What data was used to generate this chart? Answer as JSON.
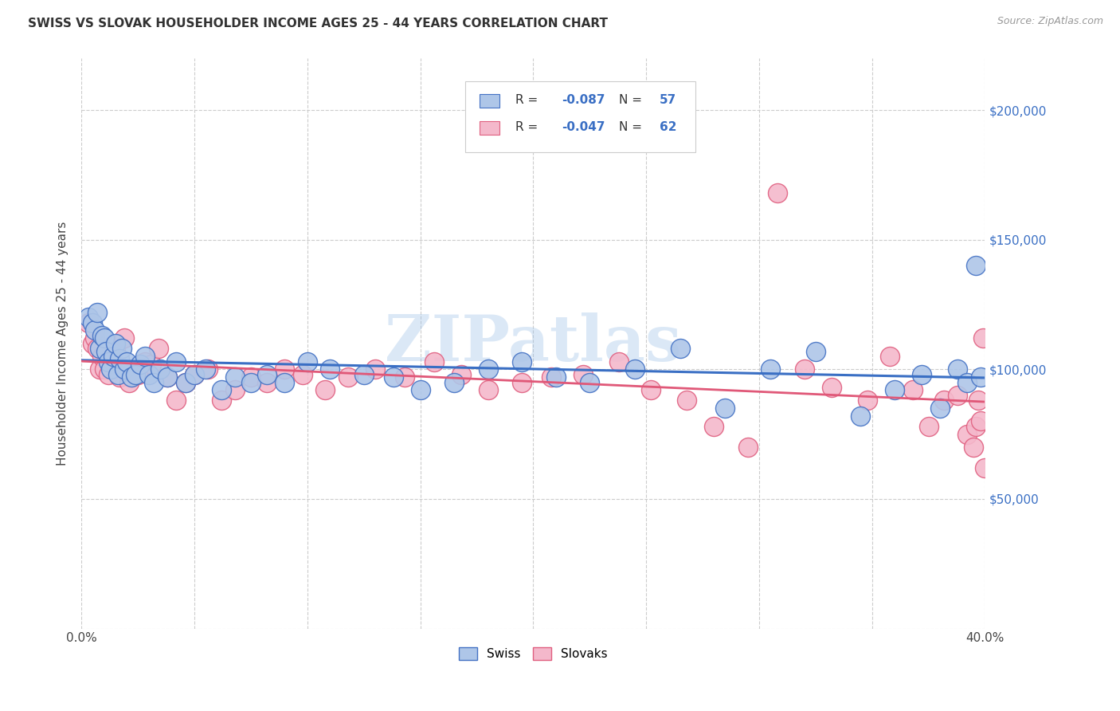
{
  "title": "SWISS VS SLOVAK HOUSEHOLDER INCOME AGES 25 - 44 YEARS CORRELATION CHART",
  "source": "Source: ZipAtlas.com",
  "ylabel": "Householder Income Ages 25 - 44 years",
  "xlim": [
    0.0,
    0.4
  ],
  "ylim": [
    0,
    220000
  ],
  "xtick_positions": [
    0.0,
    0.05,
    0.1,
    0.15,
    0.2,
    0.25,
    0.3,
    0.35,
    0.4
  ],
  "xticklabels": [
    "0.0%",
    "",
    "",
    "",
    "",
    "",
    "",
    "",
    "40.0%"
  ],
  "ytick_positions": [
    0,
    50000,
    100000,
    150000,
    200000
  ],
  "ytick_labels_right": [
    "",
    "$50,000",
    "$100,000",
    "$150,000",
    "$200,000"
  ],
  "swiss_R": -0.087,
  "swiss_N": 57,
  "slovak_R": -0.047,
  "slovak_N": 62,
  "swiss_color": "#aec6e8",
  "swiss_edge_color": "#4472c4",
  "slovak_color": "#f4b8cb",
  "slovak_edge_color": "#e06080",
  "line_blue": "#3a6fc4",
  "line_pink": "#e05878",
  "legend_value_color": "#3a6fc4",
  "legend_text_color": "#333333",
  "watermark": "ZIPatlas",
  "watermark_color_r": 0.6,
  "watermark_color_g": 0.75,
  "watermark_color_b": 0.9,
  "watermark_alpha": 0.35,
  "grid_color": "#cccccc",
  "background": "#ffffff",
  "swiss_x": [
    0.003,
    0.005,
    0.006,
    0.007,
    0.008,
    0.009,
    0.01,
    0.011,
    0.012,
    0.013,
    0.014,
    0.015,
    0.016,
    0.017,
    0.018,
    0.019,
    0.02,
    0.022,
    0.024,
    0.026,
    0.028,
    0.03,
    0.032,
    0.035,
    0.038,
    0.042,
    0.046,
    0.05,
    0.055,
    0.062,
    0.068,
    0.075,
    0.082,
    0.09,
    0.1,
    0.11,
    0.125,
    0.138,
    0.15,
    0.165,
    0.18,
    0.195,
    0.21,
    0.225,
    0.245,
    0.265,
    0.285,
    0.305,
    0.325,
    0.345,
    0.36,
    0.372,
    0.38,
    0.388,
    0.392,
    0.396,
    0.398
  ],
  "swiss_y": [
    120000,
    118000,
    115000,
    122000,
    108000,
    113000,
    112000,
    107000,
    103000,
    100000,
    105000,
    110000,
    98000,
    104000,
    108000,
    100000,
    103000,
    97000,
    98000,
    102000,
    105000,
    98000,
    95000,
    100000,
    97000,
    103000,
    95000,
    98000,
    100000,
    92000,
    97000,
    95000,
    98000,
    95000,
    103000,
    100000,
    98000,
    97000,
    92000,
    95000,
    100000,
    103000,
    97000,
    95000,
    100000,
    108000,
    85000,
    100000,
    107000,
    82000,
    92000,
    98000,
    85000,
    100000,
    95000,
    140000,
    97000
  ],
  "slovak_x": [
    0.003,
    0.005,
    0.006,
    0.007,
    0.008,
    0.009,
    0.01,
    0.011,
    0.012,
    0.013,
    0.014,
    0.015,
    0.017,
    0.019,
    0.021,
    0.023,
    0.025,
    0.028,
    0.031,
    0.034,
    0.038,
    0.042,
    0.046,
    0.05,
    0.056,
    0.062,
    0.068,
    0.075,
    0.082,
    0.09,
    0.098,
    0.108,
    0.118,
    0.13,
    0.143,
    0.156,
    0.168,
    0.18,
    0.195,
    0.208,
    0.222,
    0.238,
    0.252,
    0.268,
    0.28,
    0.295,
    0.308,
    0.32,
    0.332,
    0.348,
    0.358,
    0.368,
    0.375,
    0.382,
    0.388,
    0.392,
    0.395,
    0.396,
    0.397,
    0.398,
    0.399,
    0.4
  ],
  "slovak_y": [
    118000,
    110000,
    112000,
    108000,
    100000,
    105000,
    100000,
    107000,
    98000,
    105000,
    103000,
    108000,
    97000,
    112000,
    95000,
    100000,
    98000,
    103000,
    102000,
    108000,
    97000,
    88000,
    95000,
    98000,
    100000,
    88000,
    92000,
    97000,
    95000,
    100000,
    98000,
    92000,
    97000,
    100000,
    97000,
    103000,
    98000,
    92000,
    95000,
    97000,
    98000,
    103000,
    92000,
    88000,
    78000,
    70000,
    168000,
    100000,
    93000,
    88000,
    105000,
    92000,
    78000,
    88000,
    90000,
    75000,
    70000,
    78000,
    88000,
    80000,
    112000,
    62000
  ]
}
